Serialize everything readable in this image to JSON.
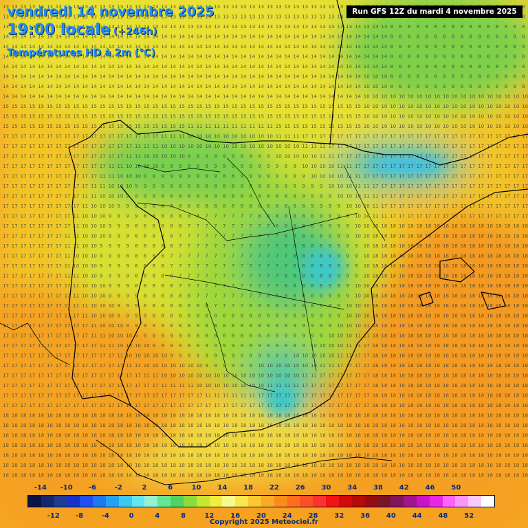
{
  "header": {
    "date": "vendredi 14 novembre 2025",
    "time": "19:00 locale",
    "offset": "(+246h)",
    "variable": "Températures HD à 2m (°C)",
    "run": "Run GFS 12Z du mardi 4 novembre 2025"
  },
  "legend": {
    "colors": [
      "#0a1446",
      "#14286e",
      "#1e3c96",
      "#1432c8",
      "#1e50f0",
      "#1e78f0",
      "#28a0f0",
      "#3cc8f0",
      "#64e6f0",
      "#96f0d2",
      "#64e696",
      "#50d264",
      "#8cdc3c",
      "#c8e632",
      "#f0f03c",
      "#fafa8c",
      "#fae650",
      "#fac832",
      "#faaa28",
      "#fa8c1e",
      "#fa6e1e",
      "#fa5028",
      "#fa3232",
      "#f01414",
      "#d20a0a",
      "#b40a0a",
      "#960a14",
      "#781428",
      "#82145a",
      "#a0148c",
      "#c814c8",
      "#e628e6",
      "#fa64fa",
      "#fa96fa",
      "#fac8fa",
      "#ffffff"
    ],
    "top_labels": [
      "-14",
      "-10",
      "-6",
      "-2",
      "2",
      "6",
      "10",
      "14",
      "18",
      "22",
      "26",
      "30",
      "34",
      "38",
      "42",
      "46",
      "50"
    ],
    "bottom_labels": [
      "-12",
      "-8",
      "-4",
      "0",
      "4",
      "8",
      "12",
      "16",
      "20",
      "24",
      "28",
      "32",
      "36",
      "40",
      "44",
      "48",
      "52"
    ]
  },
  "copyright": "Copyright 2025 Meteociel.fr"
}
